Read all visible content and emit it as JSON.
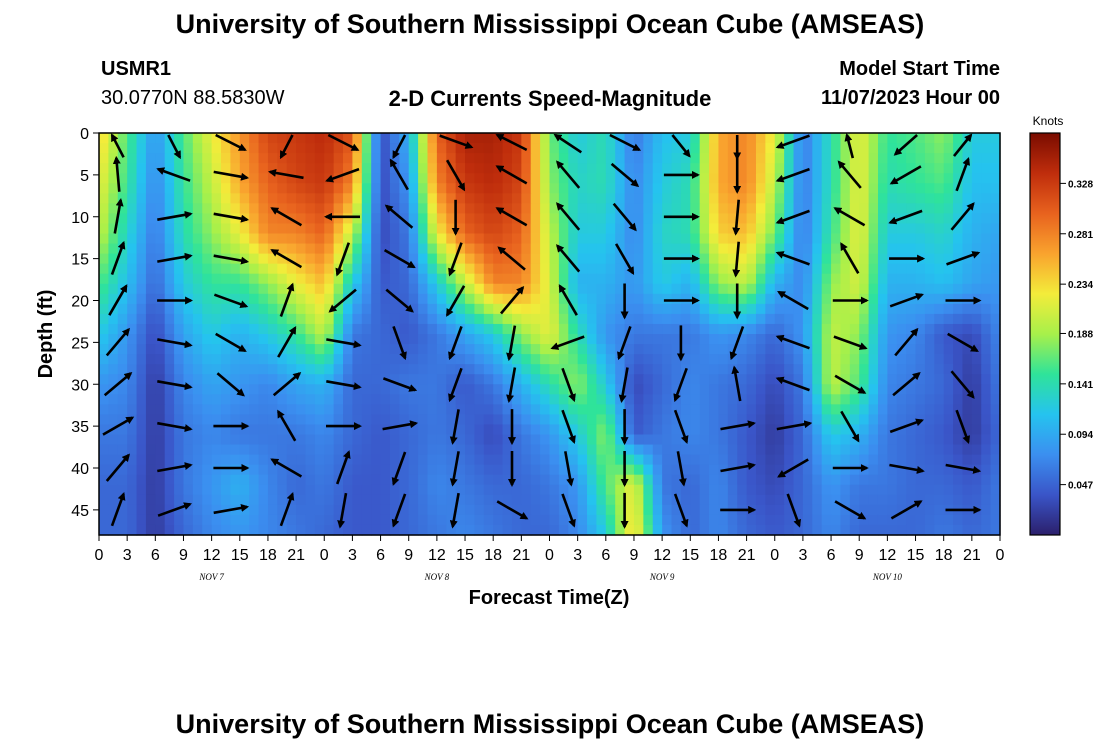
{
  "header": {
    "title": "University of Southern Mississippi Ocean Cube (AMSEAS)",
    "station_id": "USMR1",
    "station_coords": "30.0770N  88.5830W",
    "subtitle": "2-D Currents Speed-Magnitude",
    "model_start_label": "Model Start Time",
    "model_start_value": "11/07/2023 Hour 00"
  },
  "footer": {
    "title": "University of Southern Mississippi Ocean Cube (AMSEAS)"
  },
  "colors": {
    "scale": [
      "#2b1f6b",
      "#3a55c8",
      "#3b8ff0",
      "#25c3ef",
      "#2fe39a",
      "#a7f04a",
      "#f3ec3a",
      "#f9a32e",
      "#e8621e",
      "#bf2d0c",
      "#7a0c00"
    ]
  },
  "chart_data": {
    "type": "heatmap",
    "title": "2-D Currents Speed-Magnitude",
    "xlabel": "Forecast Time(Z)",
    "ylabel": "Depth (ft)",
    "x_ticks": [
      "0",
      "3",
      "6",
      "9",
      "12",
      "15",
      "18",
      "21",
      "0",
      "3",
      "6",
      "9",
      "12",
      "15",
      "18",
      "21",
      "0",
      "3",
      "6",
      "9",
      "12",
      "15",
      "18",
      "21",
      "0",
      "3",
      "6",
      "9",
      "12",
      "15",
      "18",
      "21",
      "0"
    ],
    "x_range_hours": [
      0,
      96
    ],
    "day_labels": [
      {
        "label": "NOV 7",
        "hour": 12
      },
      {
        "label": "NOV 8",
        "hour": 36
      },
      {
        "label": "NOV 9",
        "hour": 60
      },
      {
        "label": "NOV 10",
        "hour": 84
      }
    ],
    "y_ticks": [
      "0",
      "5",
      "10",
      "15",
      "20",
      "25",
      "30",
      "35",
      "40",
      "45"
    ],
    "y_range_ft": [
      0,
      48
    ],
    "colorbar": {
      "label": "Knots",
      "range": [
        0,
        0.375
      ],
      "ticks": [
        "0.328",
        "0.281",
        "0.234",
        "0.188",
        "0.141",
        "0.094",
        "0.047"
      ],
      "tick_values": [
        0.328,
        0.281,
        0.234,
        0.188,
        0.141,
        0.094,
        0.047
      ]
    },
    "speed_depths_ft": [
      0,
      6,
      12,
      18,
      24,
      30,
      36,
      42,
      48
    ],
    "speed_hours": [
      0,
      3,
      6,
      9,
      12,
      15,
      18,
      21,
      24,
      27,
      30,
      33,
      36,
      39,
      42,
      45,
      48,
      51,
      54,
      57,
      60,
      63,
      66,
      69,
      72,
      75,
      78,
      81,
      84,
      87,
      90,
      93,
      96
    ],
    "speed_knots": [
      [
        0.24,
        0.16,
        0.08,
        0.16,
        0.22,
        0.27,
        0.32,
        0.33,
        0.34,
        0.31,
        0.03,
        0.1,
        0.3,
        0.35,
        0.35,
        0.33,
        0.17,
        0.12,
        0.14,
        0.06,
        0.11,
        0.12,
        0.26,
        0.28,
        0.22,
        0.06,
        0.14,
        0.22,
        0.15,
        0.16,
        0.18,
        0.12,
        0.12
      ],
      [
        0.22,
        0.15,
        0.07,
        0.15,
        0.2,
        0.26,
        0.3,
        0.32,
        0.33,
        0.28,
        0.03,
        0.08,
        0.28,
        0.33,
        0.34,
        0.32,
        0.18,
        0.13,
        0.14,
        0.07,
        0.12,
        0.14,
        0.26,
        0.28,
        0.2,
        0.06,
        0.14,
        0.22,
        0.14,
        0.15,
        0.16,
        0.11,
        0.11
      ],
      [
        0.2,
        0.13,
        0.06,
        0.14,
        0.18,
        0.22,
        0.28,
        0.28,
        0.3,
        0.2,
        0.03,
        0.06,
        0.22,
        0.3,
        0.32,
        0.3,
        0.2,
        0.12,
        0.12,
        0.07,
        0.13,
        0.14,
        0.24,
        0.25,
        0.17,
        0.06,
        0.15,
        0.22,
        0.12,
        0.12,
        0.13,
        0.1,
        0.09
      ],
      [
        0.16,
        0.11,
        0.05,
        0.12,
        0.15,
        0.15,
        0.18,
        0.22,
        0.25,
        0.12,
        0.04,
        0.05,
        0.12,
        0.2,
        0.28,
        0.28,
        0.21,
        0.1,
        0.1,
        0.08,
        0.12,
        0.1,
        0.18,
        0.2,
        0.1,
        0.07,
        0.18,
        0.21,
        0.1,
        0.1,
        0.11,
        0.09,
        0.08
      ],
      [
        0.12,
        0.08,
        0.03,
        0.09,
        0.12,
        0.1,
        0.12,
        0.15,
        0.2,
        0.06,
        0.05,
        0.04,
        0.06,
        0.09,
        0.12,
        0.18,
        0.22,
        0.14,
        0.08,
        0.06,
        0.06,
        0.06,
        0.08,
        0.07,
        0.05,
        0.08,
        0.2,
        0.18,
        0.08,
        0.07,
        0.04,
        0.03,
        0.07
      ],
      [
        0.08,
        0.07,
        0.02,
        0.07,
        0.09,
        0.08,
        0.07,
        0.09,
        0.1,
        0.05,
        0.05,
        0.06,
        0.06,
        0.04,
        0.06,
        0.1,
        0.14,
        0.18,
        0.12,
        0.03,
        0.05,
        0.07,
        0.06,
        0.05,
        0.03,
        0.06,
        0.2,
        0.16,
        0.07,
        0.06,
        0.05,
        0.02,
        0.06
      ],
      [
        0.06,
        0.06,
        0.02,
        0.06,
        0.07,
        0.06,
        0.06,
        0.06,
        0.07,
        0.05,
        0.04,
        0.05,
        0.06,
        0.05,
        0.03,
        0.06,
        0.08,
        0.12,
        0.18,
        0.04,
        0.06,
        0.07,
        0.06,
        0.04,
        0.02,
        0.05,
        0.12,
        0.1,
        0.06,
        0.05,
        0.04,
        0.02,
        0.05
      ],
      [
        0.05,
        0.05,
        0.02,
        0.06,
        0.08,
        0.1,
        0.07,
        0.05,
        0.06,
        0.04,
        0.04,
        0.05,
        0.07,
        0.06,
        0.05,
        0.05,
        0.06,
        0.08,
        0.16,
        0.22,
        0.06,
        0.05,
        0.07,
        0.04,
        0.03,
        0.05,
        0.08,
        0.06,
        0.06,
        0.05,
        0.05,
        0.04,
        0.06
      ],
      [
        0.05,
        0.05,
        0.02,
        0.05,
        0.07,
        0.08,
        0.07,
        0.06,
        0.05,
        0.04,
        0.04,
        0.05,
        0.06,
        0.07,
        0.06,
        0.05,
        0.05,
        0.07,
        0.12,
        0.24,
        0.08,
        0.05,
        0.07,
        0.05,
        0.04,
        0.05,
        0.07,
        0.05,
        0.05,
        0.05,
        0.06,
        0.05,
        0.06
      ]
    ],
    "vectors": {
      "depths_ft": [
        1,
        5,
        10,
        15,
        20,
        25,
        30,
        35,
        40,
        45
      ],
      "hours": [
        2,
        8,
        14,
        20,
        26,
        32,
        38,
        44,
        50,
        56,
        62,
        68,
        74,
        80,
        86,
        92
      ],
      "direction_deg": [
        [
          340,
          160,
          120,
          200,
          120,
          200,
          110,
          300,
          310,
          120,
          150,
          180,
          250,
          350,
          220,
          30
        ],
        [
          355,
          290,
          100,
          280,
          250,
          330,
          150,
          300,
          320,
          130,
          90,
          180,
          250,
          320,
          240,
          20
        ],
        [
          10,
          80,
          100,
          300,
          270,
          310,
          180,
          300,
          320,
          140,
          90,
          185,
          250,
          300,
          250,
          40
        ],
        [
          20,
          80,
          100,
          300,
          200,
          120,
          200,
          310,
          320,
          150,
          90,
          185,
          290,
          330,
          90,
          70
        ],
        [
          30,
          90,
          110,
          20,
          230,
          130,
          210,
          40,
          330,
          180,
          90,
          180,
          300,
          90,
          70,
          90
        ],
        [
          40,
          100,
          120,
          30,
          100,
          160,
          200,
          190,
          250,
          200,
          180,
          200,
          290,
          110,
          40,
          120
        ],
        [
          50,
          100,
          130,
          50,
          100,
          110,
          200,
          190,
          160,
          190,
          200,
          350,
          290,
          120,
          50,
          140
        ],
        [
          60,
          100,
          90,
          330,
          90,
          80,
          190,
          180,
          160,
          180,
          160,
          80,
          80,
          150,
          70,
          160
        ],
        [
          40,
          80,
          90,
          300,
          20,
          200,
          190,
          180,
          170,
          180,
          170,
          80,
          240,
          90,
          100,
          100
        ],
        [
          20,
          70,
          80,
          20,
          190,
          200,
          190,
          120,
          160,
          180,
          160,
          90,
          160,
          120,
          60,
          90
        ]
      ]
    }
  }
}
